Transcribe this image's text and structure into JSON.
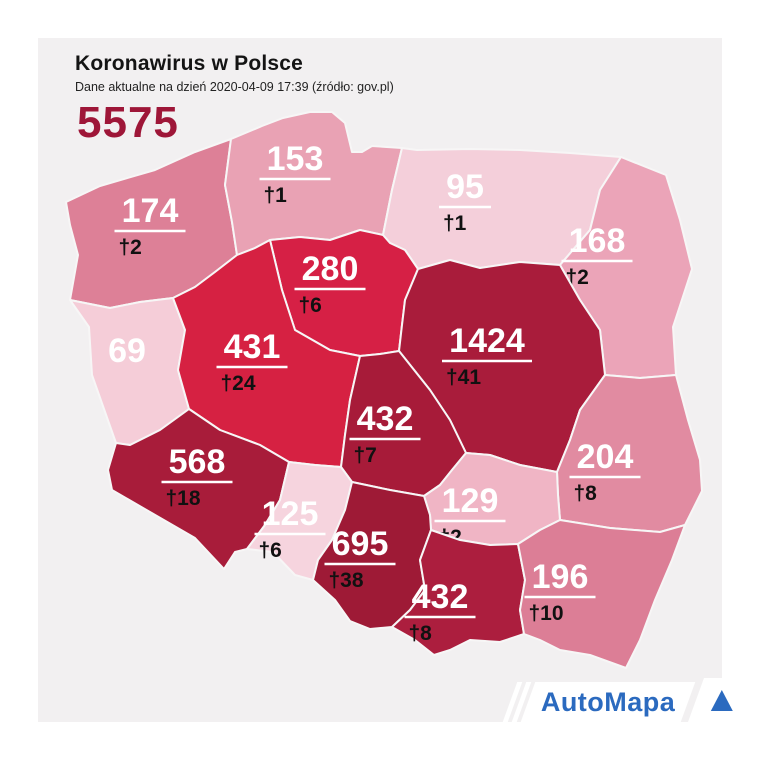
{
  "header": {
    "title": "Koronawirus w Polsce",
    "subtitle": "Dane aktualne na dzień 2020-04-09 17:39 (źródło: gov.pl)",
    "total_cases": "5575",
    "total_color": "#9e1638"
  },
  "map": {
    "death_symbol": "†",
    "border_color": "#f7f6f6",
    "regions": [
      {
        "id": "zachodniopomorskie",
        "cases": "174",
        "deaths": 2,
        "color": "#dd8097"
      },
      {
        "id": "pomorskie",
        "cases": "153",
        "deaths": 1,
        "color": "#e9a2b4"
      },
      {
        "id": "warminsko-mazurskie",
        "cases": "95",
        "deaths": 1,
        "color": "#f4cfda"
      },
      {
        "id": "podlaskie",
        "cases": "168",
        "deaths": 2,
        "color": "#eba4b8"
      },
      {
        "id": "kujawsko-pomorskie",
        "cases": "280",
        "deaths": 6,
        "color": "#d62045"
      },
      {
        "id": "lubuskie",
        "cases": "69",
        "deaths": 0,
        "color": "#f5cdd8"
      },
      {
        "id": "wielkopolskie",
        "cases": "431",
        "deaths": 24,
        "color": "#d62142"
      },
      {
        "id": "mazowieckie",
        "cases": "1424",
        "deaths": 41,
        "color": "#a91c3b"
      },
      {
        "id": "lodzkie",
        "cases": "432",
        "deaths": 7,
        "color": "#a71b39"
      },
      {
        "id": "lubelskie",
        "cases": "204",
        "deaths": 8,
        "color": "#e18ba1"
      },
      {
        "id": "dolnoslaskie",
        "cases": "568",
        "deaths": 18,
        "color": "#a81c3a"
      },
      {
        "id": "opolskie",
        "cases": "125",
        "deaths": 6,
        "color": "#f6d4de"
      },
      {
        "id": "swietokrzyskie",
        "cases": "129",
        "deaths": 2,
        "color": "#f0b5c5"
      },
      {
        "id": "slaskie",
        "cases": "695",
        "deaths": 38,
        "color": "#9e1a36"
      },
      {
        "id": "malopolskie",
        "cases": "432",
        "deaths": 8,
        "color": "#ac1e3e"
      },
      {
        "id": "podkarpackie",
        "cases": "196",
        "deaths": 10,
        "color": "#dc7e96"
      }
    ]
  },
  "footer": {
    "brand": "AutoMapa",
    "brand_color": "#2b6abf"
  }
}
